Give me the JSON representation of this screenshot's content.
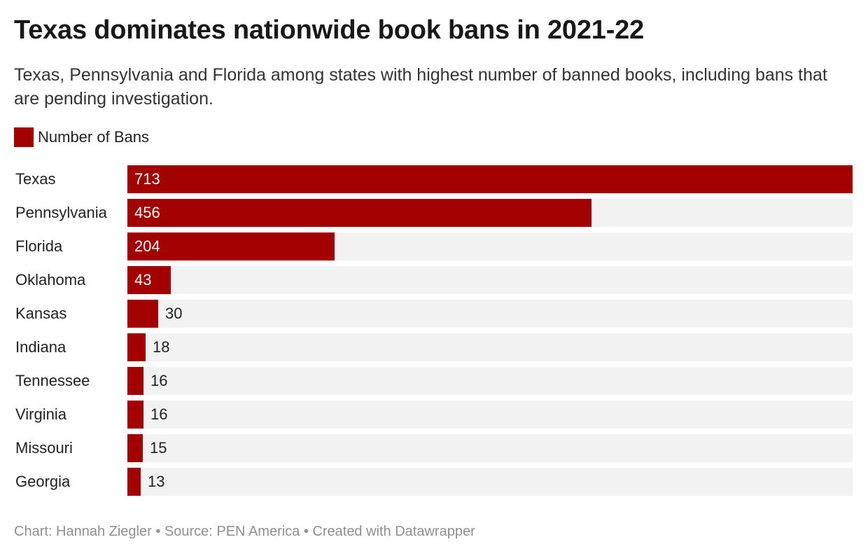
{
  "title": "Texas dominates nationwide book bans in 2021-22",
  "subtitle": "Texas, Pennsylvania and Florida among states with highest number of banned books, including bans that are pending investigation.",
  "footer": "Chart: Hannah Ziegler • Source: PEN America • Created with Datawrapper",
  "colors": {
    "bar": "#a30000",
    "track": "#f2f2f2"
  },
  "chart_data": {
    "type": "bar",
    "orientation": "horizontal",
    "legend": [
      "Number of Bans"
    ],
    "legend_position": "top-left",
    "categories": [
      "Texas",
      "Pennsylvania",
      "Florida",
      "Oklahoma",
      "Kansas",
      "Indiana",
      "Tennessee",
      "Virginia",
      "Missouri",
      "Georgia"
    ],
    "series": [
      {
        "name": "Number of Bans",
        "values": [
          713,
          456,
          204,
          43,
          30,
          18,
          16,
          16,
          15,
          13
        ]
      }
    ],
    "xlim": [
      0,
      713
    ],
    "grid": false
  }
}
